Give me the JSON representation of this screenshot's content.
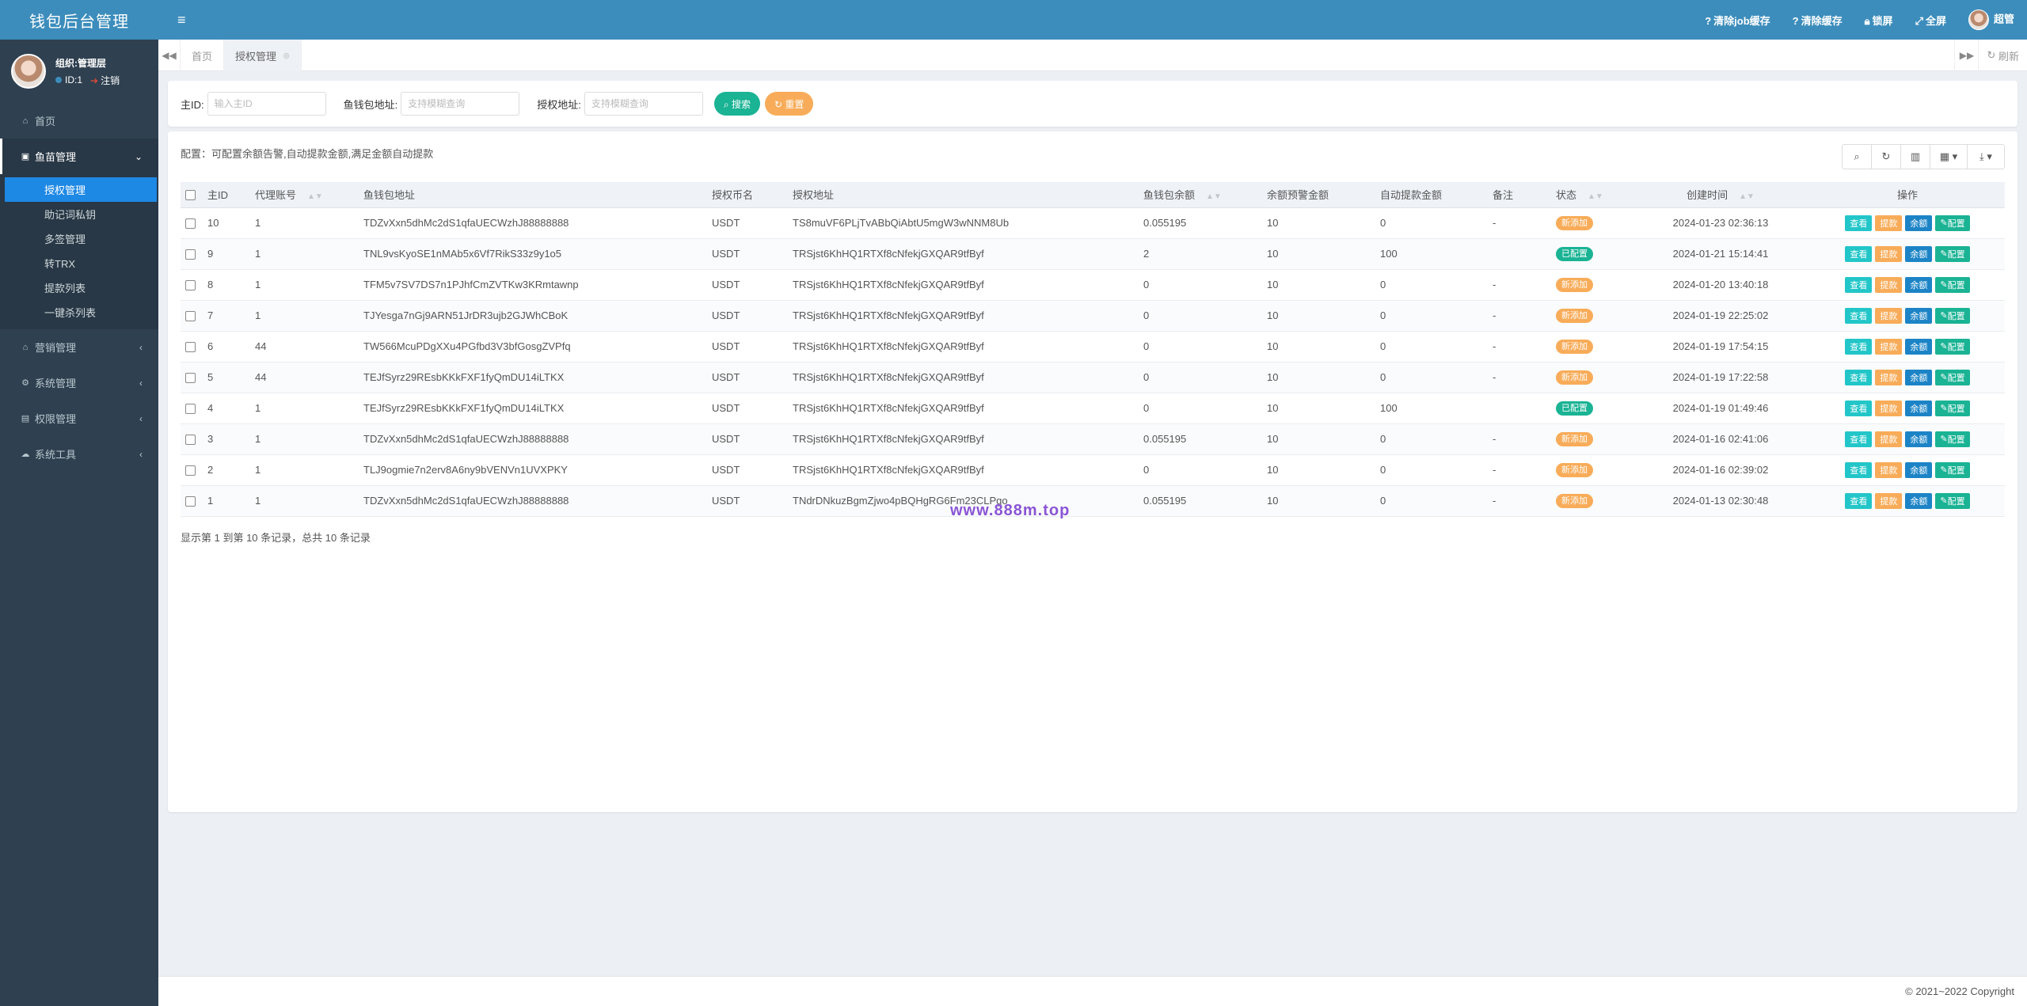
{
  "app": {
    "title": "钱包后台管理"
  },
  "user": {
    "name": "组织:管理层",
    "id_label": "ID:1",
    "logout_label": "注销"
  },
  "sidebar": {
    "items": [
      {
        "label": "首页",
        "icon": "home-icon",
        "glyph": "⌂"
      },
      {
        "label": "鱼苗管理",
        "icon": "wallet-icon",
        "glyph": "▣"
      },
      {
        "label": "营销管理",
        "icon": "bank-icon",
        "glyph": "⌂"
      },
      {
        "label": "系统管理",
        "icon": "gear-icon",
        "glyph": "⚙"
      },
      {
        "label": "权限管理",
        "icon": "id-card-icon",
        "glyph": "▤"
      },
      {
        "label": "系统工具",
        "icon": "cloud-icon",
        "glyph": "☁"
      }
    ],
    "subitems": [
      "授权管理",
      "助记词私钥",
      "多签管理",
      "转TRX",
      "提款列表",
      "一键杀列表"
    ]
  },
  "topbar": {
    "actions": [
      {
        "label": "清除job缓存",
        "icon": "question-circle-icon"
      },
      {
        "label": "清除缓存",
        "icon": "question-circle-icon"
      },
      {
        "label": "锁屏",
        "icon": "lock-icon"
      },
      {
        "label": "全屏",
        "icon": "expand-icon"
      }
    ],
    "admin_label": "超管"
  },
  "tabs": [
    {
      "label": "首页"
    },
    {
      "label": "授权管理"
    }
  ],
  "refresh_label": "刷新",
  "search": {
    "fields": [
      {
        "label": "主ID:",
        "placeholder": "输入主ID"
      },
      {
        "label": "鱼钱包地址:",
        "placeholder": "支持模糊查询"
      },
      {
        "label": "授权地址:",
        "placeholder": "支持模糊查询"
      }
    ],
    "search_button": "搜索",
    "reset_button": "重置"
  },
  "config_note": "配置：可配置余额告警,自动提款金额,满足金额自动提款",
  "table": {
    "headers": [
      "主ID",
      "代理账号",
      "鱼钱包地址",
      "授权币名",
      "授权地址",
      "鱼钱包余额",
      "余额预警金额",
      "自动提款金额",
      "备注",
      "状态",
      "创建时间",
      "操作"
    ],
    "rows": [
      {
        "id": "10",
        "agent": "1",
        "fish": "TDZvXxn5dhMc2dS1qfaUECWzhJ88888888",
        "coin": "USDT",
        "auth": "TS8muVF6PLjTvABbQiAbtU5mgW3wNNM8Ub",
        "balance": "0.055195",
        "warn": "10",
        "auto": "0",
        "note": "-",
        "status": "新添加",
        "status_type": "pending",
        "time": "2024-01-23 02:36:13"
      },
      {
        "id": "9",
        "agent": "1",
        "fish": "TNL9vsKyoSE1nMAb5x6Vf7RikS33z9y1o5",
        "coin": "USDT",
        "auth": "TRSjst6KhHQ1RTXf8cNfekjGXQAR9tfByf",
        "balance": "2",
        "warn": "10",
        "auto": "100",
        "note": "",
        "status": "已配置",
        "status_type": "done",
        "time": "2024-01-21 15:14:41"
      },
      {
        "id": "8",
        "agent": "1",
        "fish": "TFM5v7SV7DS7n1PJhfCmZVTKw3KRmtawnp",
        "coin": "USDT",
        "auth": "TRSjst6KhHQ1RTXf8cNfekjGXQAR9tfByf",
        "balance": "0",
        "warn": "10",
        "auto": "0",
        "note": "-",
        "status": "新添加",
        "status_type": "pending",
        "time": "2024-01-20 13:40:18"
      },
      {
        "id": "7",
        "agent": "1",
        "fish": "TJYesga7nGj9ARN51JrDR3ujb2GJWhCBoK",
        "coin": "USDT",
        "auth": "TRSjst6KhHQ1RTXf8cNfekjGXQAR9tfByf",
        "balance": "0",
        "warn": "10",
        "auto": "0",
        "note": "-",
        "status": "新添加",
        "status_type": "pending",
        "time": "2024-01-19 22:25:02"
      },
      {
        "id": "6",
        "agent": "44",
        "fish": "TW566McuPDgXXu4PGfbd3V3bfGosgZVPfq",
        "coin": "USDT",
        "auth": "TRSjst6KhHQ1RTXf8cNfekjGXQAR9tfByf",
        "balance": "0",
        "warn": "10",
        "auto": "0",
        "note": "-",
        "status": "新添加",
        "status_type": "pending",
        "time": "2024-01-19 17:54:15"
      },
      {
        "id": "5",
        "agent": "44",
        "fish": "TEJfSyrz29REsbKKkFXF1fyQmDU14iLTKX",
        "coin": "USDT",
        "auth": "TRSjst6KhHQ1RTXf8cNfekjGXQAR9tfByf",
        "balance": "0",
        "warn": "10",
        "auto": "0",
        "note": "-",
        "status": "新添加",
        "status_type": "pending",
        "time": "2024-01-19 17:22:58"
      },
      {
        "id": "4",
        "agent": "1",
        "fish": "TEJfSyrz29REsbKKkFXF1fyQmDU14iLTKX",
        "coin": "USDT",
        "auth": "TRSjst6KhHQ1RTXf8cNfekjGXQAR9tfByf",
        "balance": "0",
        "warn": "10",
        "auto": "100",
        "note": "",
        "status": "已配置",
        "status_type": "done",
        "time": "2024-01-19 01:49:46"
      },
      {
        "id": "3",
        "agent": "1",
        "fish": "TDZvXxn5dhMc2dS1qfaUECWzhJ88888888",
        "coin": "USDT",
        "auth": "TRSjst6KhHQ1RTXf8cNfekjGXQAR9tfByf",
        "balance": "0.055195",
        "warn": "10",
        "auto": "0",
        "note": "-",
        "status": "新添加",
        "status_type": "pending",
        "time": "2024-01-16 02:41:06"
      },
      {
        "id": "2",
        "agent": "1",
        "fish": "TLJ9ogmie7n2erv8A6ny9bVENVn1UVXPKY",
        "coin": "USDT",
        "auth": "TRSjst6KhHQ1RTXf8cNfekjGXQAR9tfByf",
        "balance": "0",
        "warn": "10",
        "auto": "0",
        "note": "-",
        "status": "新添加",
        "status_type": "pending",
        "time": "2024-01-16 02:39:02"
      },
      {
        "id": "1",
        "agent": "1",
        "fish": "TDZvXxn5dhMc2dS1qfaUECWzhJ88888888",
        "coin": "USDT",
        "auth": "TNdrDNkuzBgmZjwo4pBQHgRG6Fm23CLPgo",
        "balance": "0.055195",
        "warn": "10",
        "auto": "0",
        "note": "-",
        "status": "新添加",
        "status_type": "pending",
        "time": "2024-01-13 02:30:48"
      }
    ],
    "row_actions": [
      "查看",
      "提款",
      "余额",
      "配置"
    ]
  },
  "pagination_text": "显示第 1 到第 10 条记录，总共 10 条记录",
  "watermark": "www.888m.top",
  "footer": "© 2021~2022 Copyright",
  "colors": {
    "brand": "#3c8dbc",
    "sidebar": "#2f4050",
    "primary": "#1ab394",
    "warning": "#f8ac59",
    "info": "#23c6c8",
    "active": "#1e88e5"
  }
}
